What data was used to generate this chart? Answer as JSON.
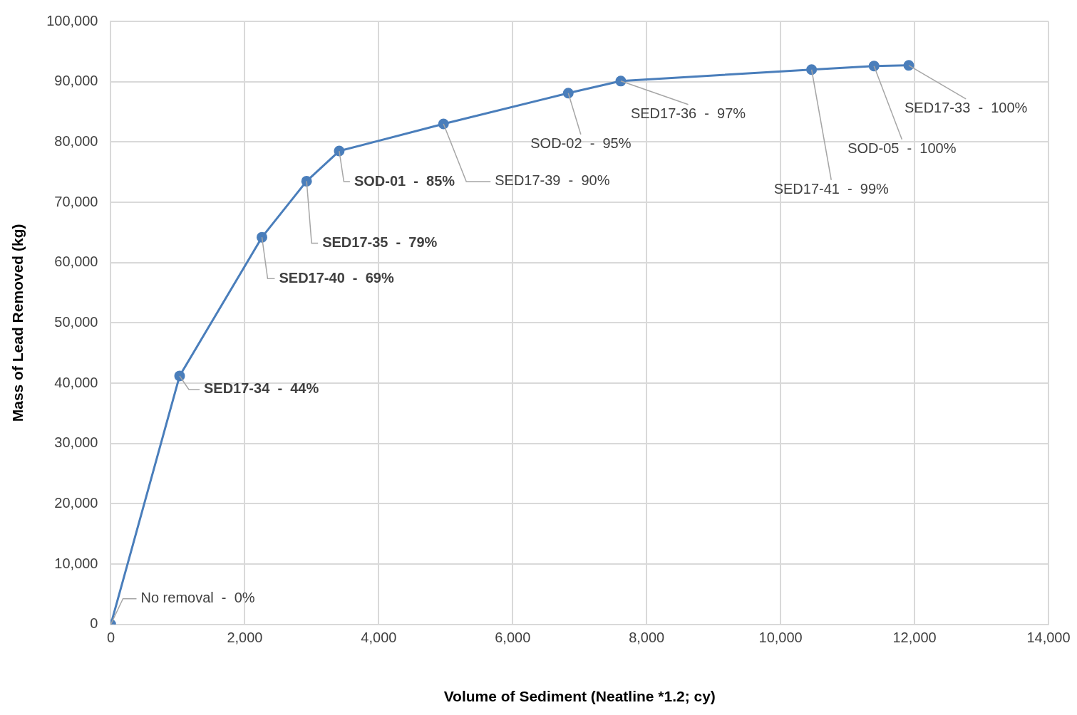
{
  "chart_data": {
    "type": "line",
    "xlabel": "Volume of Sediment (Neatline *1.2; cy)",
    "ylabel": "Mass of Lead Removed (kg)",
    "x": [
      0,
      1027,
      2256,
      2923,
      3410,
      4967,
      6830,
      7614,
      10463,
      11395,
      11914
    ],
    "series": [
      {
        "color": "#4a7ebb",
        "values": [
          0,
          41200,
          64200,
          73500,
          78500,
          83000,
          88100,
          90100,
          92000,
          92600,
          92700
        ]
      }
    ],
    "xlim": [
      0,
      14000
    ],
    "xticks": [
      {
        "value": 0,
        "label": "0"
      },
      {
        "value": 2000,
        "label": "2,000"
      },
      {
        "value": 4000,
        "label": "4,000"
      },
      {
        "value": 6000,
        "label": "6,000"
      },
      {
        "value": 8000,
        "label": "8,000"
      },
      {
        "value": 10000,
        "label": "10,000"
      },
      {
        "value": 12000,
        "label": "12,000"
      },
      {
        "value": 14000,
        "label": "14,000"
      }
    ],
    "ylim": [
      0,
      100000
    ],
    "yticks": [
      {
        "value": 0,
        "label": "0"
      },
      {
        "value": 10000,
        "label": "10,000"
      },
      {
        "value": 20000,
        "label": "20,000"
      },
      {
        "value": 30000,
        "label": "30,000"
      },
      {
        "value": 40000,
        "label": "40,000"
      },
      {
        "value": 50000,
        "label": "50,000"
      },
      {
        "value": 60000,
        "label": "60,000"
      },
      {
        "value": 70000,
        "label": "70,000"
      },
      {
        "value": 80000,
        "label": "80,000"
      },
      {
        "value": 90000,
        "label": "90,000"
      },
      {
        "value": 100000,
        "label": "100,000"
      }
    ],
    "grid": true,
    "legend": false,
    "marker": "circle",
    "line_style": "solid",
    "annotations": [
      {
        "text": "No removal  -  0%",
        "x": 0,
        "y": 0
      },
      {
        "text": "SED17-34  -  44%",
        "x": 1027,
        "y": 41200
      },
      {
        "text": "SED17-40  -  69%",
        "x": 2256,
        "y": 64200
      },
      {
        "text": "SED17-35  -  79%",
        "x": 2923,
        "y": 73500
      },
      {
        "text": "SOD-01  -  85%",
        "x": 3410,
        "y": 78500
      },
      {
        "text": "SED17-39  -  90%",
        "x": 4967,
        "y": 83000
      },
      {
        "text": "SOD-02  -  95%",
        "x": 6830,
        "y": 88100
      },
      {
        "text": "SED17-36  -  97%",
        "x": 7614,
        "y": 90100
      },
      {
        "text": "SED17-41  -  99%",
        "x": 10463,
        "y": 92000
      },
      {
        "text": "SOD-05  -  100%",
        "x": 11395,
        "y": 92600
      },
      {
        "text": "SED17-33  -  100%",
        "x": 11914,
        "y": 92700
      }
    ]
  }
}
